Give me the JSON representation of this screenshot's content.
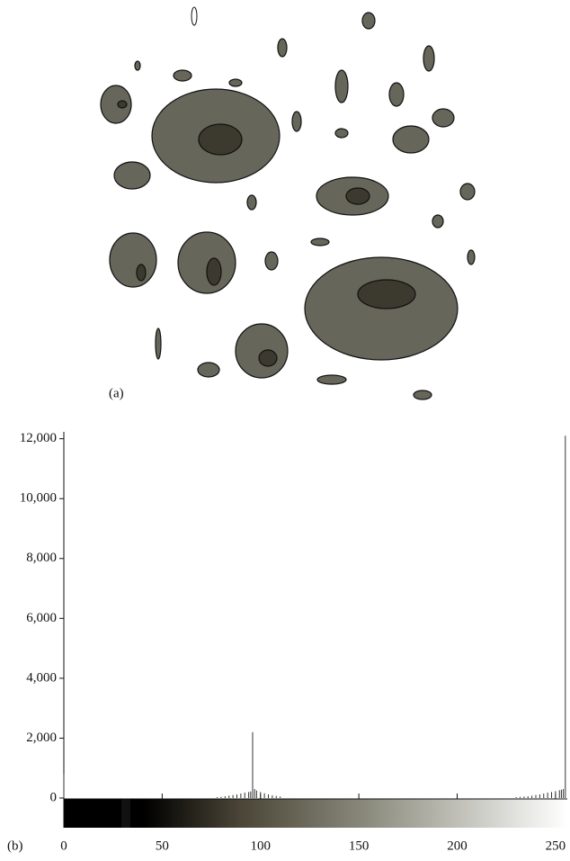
{
  "image": {
    "label": "(a)"
  },
  "chart_data": {
    "type": "bar",
    "label": "(b)",
    "color": "#333333",
    "x": [
      0,
      78,
      80,
      82,
      84,
      86,
      88,
      90,
      92,
      94,
      95,
      96,
      97,
      98,
      100,
      102,
      104,
      106,
      108,
      110,
      230,
      232,
      234,
      236,
      238,
      240,
      242,
      244,
      246,
      248,
      250,
      252,
      253,
      254,
      255
    ],
    "values": [
      800,
      30,
      40,
      60,
      80,
      100,
      120,
      150,
      180,
      200,
      220,
      2200,
      300,
      250,
      200,
      160,
      120,
      90,
      70,
      50,
      30,
      40,
      50,
      60,
      80,
      100,
      120,
      150,
      180,
      200,
      230,
      260,
      280,
      300,
      12100
    ],
    "xlim": [
      0,
      256
    ],
    "ylim": [
      0,
      12200
    ],
    "xticks": [
      0,
      50,
      100,
      150,
      200,
      250
    ],
    "yticks": [
      0,
      {
        "value": 2000,
        "label": "2,000"
      },
      {
        "value": 4000,
        "label": "4,000"
      },
      {
        "value": 6000,
        "label": "6,000"
      },
      {
        "value": 8000,
        "label": "8,000"
      },
      {
        "value": 10000,
        "label": "10,000"
      },
      {
        "value": 12000,
        "label": "12,000"
      }
    ]
  }
}
